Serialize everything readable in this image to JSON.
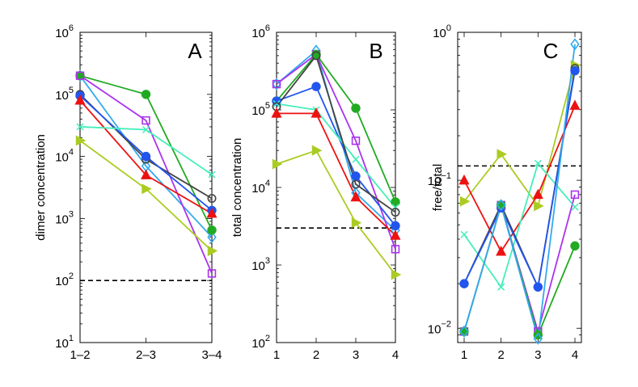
{
  "chart_data": [
    {
      "type": "line",
      "panel_label": "A",
      "ylabel": "dimer concentration",
      "xlabel": "",
      "yscale": "log",
      "ylim": [
        10,
        1000000
      ],
      "ytick_labels": [
        {
          "base": "10",
          "exp": "1"
        },
        {
          "base": "10",
          "exp": "2"
        },
        {
          "base": "10",
          "exp": "3"
        },
        {
          "base": "10",
          "exp": "4"
        },
        {
          "base": "10",
          "exp": "5"
        },
        {
          "base": "10",
          "exp": "6"
        }
      ],
      "categories": [
        "1–2",
        "2–3",
        "3–4"
      ],
      "series": [
        {
          "name": "blue-light-diamond",
          "color": "#33aaee",
          "marker": "diamond",
          "values": [
            200000,
            7000,
            500
          ]
        },
        {
          "name": "green-circle",
          "color": "#22aa22",
          "marker": "circle",
          "values": [
            200000,
            100000,
            650
          ]
        },
        {
          "name": "purple-square",
          "color": "#aa33ee",
          "marker": "square",
          "values": [
            200000,
            38000,
            130
          ]
        },
        {
          "name": "gray-open-circle",
          "color": "#444444",
          "marker": "open-circle",
          "values": [
            100000,
            9000,
            2100
          ]
        },
        {
          "name": "blue-circle",
          "color": "#2255ee",
          "marker": "circle",
          "values": [
            95000,
            10000,
            1350
          ]
        },
        {
          "name": "red-triangle",
          "color": "#ee1111",
          "marker": "triangle",
          "values": [
            80000,
            5000,
            1200
          ]
        },
        {
          "name": "cyan-x",
          "color": "#44eebb",
          "marker": "x",
          "values": [
            30000,
            27000,
            5100
          ]
        },
        {
          "name": "yellowgreen-right-triangle",
          "color": "#aacc22",
          "marker": "triangle-right",
          "values": [
            18000,
            3000,
            300
          ]
        }
      ],
      "reference_line": {
        "value": 100,
        "style": "dashed",
        "color": "#000000"
      }
    },
    {
      "type": "line",
      "panel_label": "B",
      "ylabel": "total concentration",
      "xlabel": "",
      "yscale": "log",
      "ylim": [
        100,
        1000000
      ],
      "ytick_labels": [
        {
          "base": "10",
          "exp": "2"
        },
        {
          "base": "10",
          "exp": "3"
        },
        {
          "base": "10",
          "exp": "4"
        },
        {
          "base": "10",
          "exp": "5"
        },
        {
          "base": "10",
          "exp": "6"
        }
      ],
      "categories": [
        "1",
        "2",
        "3",
        "4"
      ],
      "series": [
        {
          "name": "blue-light-diamond",
          "color": "#33aaee",
          "marker": "diamond",
          "values": [
            215000,
            580000,
            8500,
            2800
          ]
        },
        {
          "name": "purple-square",
          "color": "#aa33ee",
          "marker": "square",
          "values": [
            215000,
            520000,
            40000,
            1600
          ]
        },
        {
          "name": "green-circle",
          "color": "#22aa22",
          "marker": "circle",
          "values": [
            130000,
            520000,
            105000,
            6500
          ]
        },
        {
          "name": "blue-circle",
          "color": "#2255ee",
          "marker": "circle",
          "values": [
            130000,
            200000,
            14000,
            3200
          ]
        },
        {
          "name": "cyan-x",
          "color": "#44eebb",
          "marker": "x",
          "values": [
            120000,
            100000,
            23000,
            5500
          ]
        },
        {
          "name": "gray-open-circle",
          "color": "#444444",
          "marker": "open-circle",
          "values": [
            110000,
            500000,
            11000,
            4800
          ]
        },
        {
          "name": "red-triangle",
          "color": "#ee1111",
          "marker": "triangle",
          "values": [
            90000,
            90000,
            7500,
            2400
          ]
        },
        {
          "name": "yellowgreen-right-triangle",
          "color": "#aacc22",
          "marker": "triangle-right",
          "values": [
            20000,
            30000,
            3500,
            750
          ]
        }
      ],
      "reference_line": {
        "value": 3000,
        "style": "dashed",
        "color": "#000000"
      }
    },
    {
      "type": "line",
      "panel_label": "C",
      "ylabel": "free/total",
      "xlabel": "",
      "yscale": "log",
      "ylim": [
        0.008,
        1
      ],
      "ytick_labels": [
        {
          "base": "10",
          "exp": "−2"
        },
        {
          "base": "10",
          "exp": "−1"
        },
        {
          "base": "10",
          "exp": "0"
        }
      ],
      "categories": [
        "1",
        "2",
        "3",
        "4"
      ],
      "series": [
        {
          "name": "yellowgreen-right-triangle",
          "color": "#aacc22",
          "marker": "triangle-right",
          "values": [
            0.072,
            0.15,
            0.067,
            0.6
          ]
        },
        {
          "name": "red-triangle",
          "color": "#ee1111",
          "marker": "triangle",
          "values": [
            0.1,
            0.033,
            0.08,
            0.32
          ]
        },
        {
          "name": "cyan-x",
          "color": "#44eebb",
          "marker": "x",
          "values": [
            0.043,
            0.019,
            0.13,
            0.066
          ]
        },
        {
          "name": "gray-open-circle",
          "color": "#444444",
          "marker": "open-circle",
          "values": [
            0.02,
            0.068,
            0.019,
            0.57
          ]
        },
        {
          "name": "blue-circle",
          "color": "#2255ee",
          "marker": "circle",
          "values": [
            0.02,
            0.065,
            0.019,
            0.55
          ]
        },
        {
          "name": "purple-square",
          "color": "#aa33ee",
          "marker": "square",
          "values": [
            0.0095,
            0.068,
            0.0095,
            0.08
          ]
        },
        {
          "name": "green-circle",
          "color": "#22aa22",
          "marker": "circle",
          "values": [
            0.0095,
            0.068,
            0.009,
            0.036
          ]
        },
        {
          "name": "blue-light-diamond",
          "color": "#33aaee",
          "marker": "diamond",
          "values": [
            0.0095,
            0.068,
            0.0085,
            0.83
          ]
        }
      ],
      "reference_line": {
        "value": 0.125,
        "style": "dashed",
        "color": "#000000"
      }
    }
  ]
}
